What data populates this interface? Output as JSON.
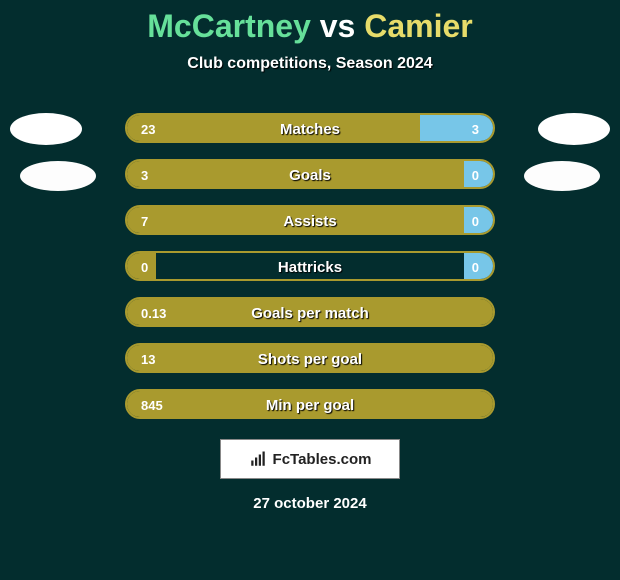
{
  "title_parts": {
    "p1": "McCartney",
    "vs": "vs",
    "p2": "Camier"
  },
  "subtitle": "Club competitions, Season 2024",
  "colors": {
    "bg": "#032d2e",
    "title_p1": "#66e09a",
    "title_vs": "#ffffff",
    "title_p2": "#e7dc6a",
    "subtitle": "#ffffff",
    "subtitle_shadow": "#000000",
    "badge_left": "#ffffff",
    "badge_right": "#ffffff",
    "badge2_left": "#fdfdfd",
    "badge2_right": "#fdfdfd",
    "row_border": "#a99a2e",
    "bar_left": "#a99a2e",
    "bar_right": "#77c6e8",
    "row_text": "#ffffff",
    "logo_box_bg": "#ffffff",
    "logo_text": "#222222",
    "date": "#ffffff"
  },
  "rows": [
    {
      "label": "Matches",
      "left": "23",
      "right": "3",
      "leftPct": 80,
      "rightPct": 20
    },
    {
      "label": "Goals",
      "left": "3",
      "right": "0",
      "leftPct": 92,
      "rightPct": 8
    },
    {
      "label": "Assists",
      "left": "7",
      "right": "0",
      "leftPct": 92,
      "rightPct": 8
    },
    {
      "label": "Hattricks",
      "left": "0",
      "right": "0",
      "leftPct": 8,
      "rightPct": 8
    },
    {
      "label": "Goals per match",
      "left": "0.13",
      "right": "",
      "leftPct": 100,
      "rightPct": 0
    },
    {
      "label": "Shots per goal",
      "left": "13",
      "right": "",
      "leftPct": 100,
      "rightPct": 0
    },
    {
      "label": "Min per goal",
      "left": "845",
      "right": "",
      "leftPct": 100,
      "rightPct": 0
    }
  ],
  "logo_text": "FcTables.com",
  "date": "27 october 2024"
}
